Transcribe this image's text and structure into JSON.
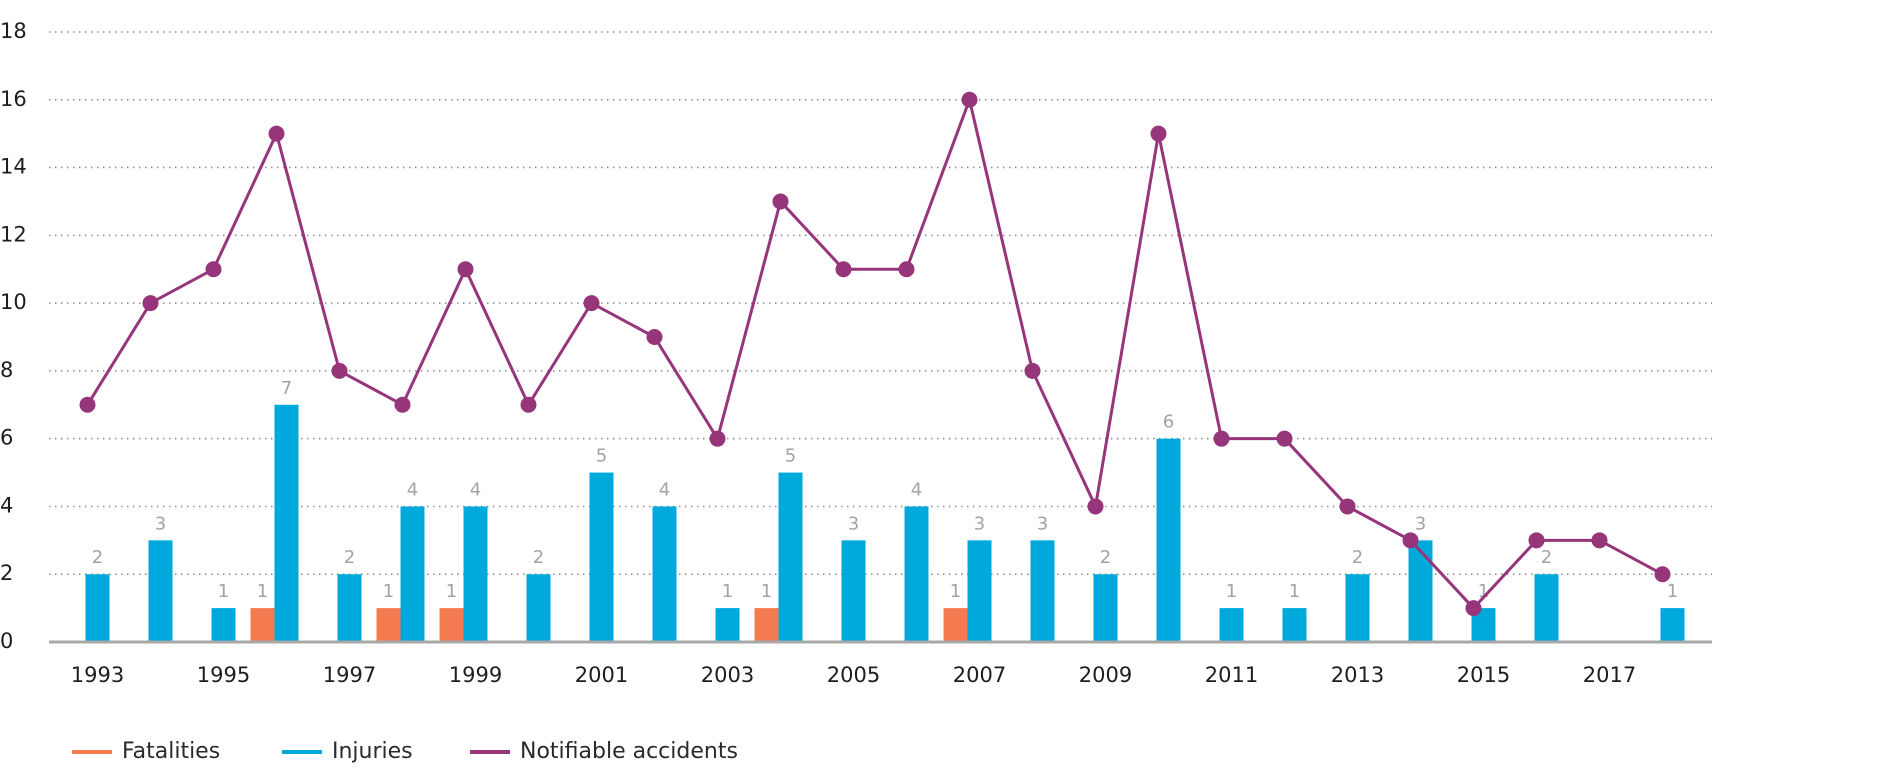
{
  "chart_data": {
    "type": "bar-line",
    "categories": [
      "1993",
      null,
      "1995",
      null,
      "1997",
      null,
      "1999",
      null,
      "2001",
      null,
      "2003",
      null,
      "2005",
      null,
      "2007",
      null,
      "2009",
      null,
      "2011",
      null,
      "2013",
      null,
      "2015",
      null,
      "2017",
      null
    ],
    "series": [
      {
        "name": "Fatalities",
        "color": "#f47b4f",
        "kind": "bar",
        "values": [
          null,
          null,
          null,
          1,
          null,
          1,
          1,
          null,
          null,
          null,
          null,
          1,
          null,
          null,
          1,
          null,
          null,
          null,
          null,
          null,
          null,
          null,
          null,
          null,
          null,
          null
        ]
      },
      {
        "name": "Injuries",
        "color": "#00a9dc",
        "kind": "bar",
        "values": [
          2,
          3,
          1,
          7,
          2,
          4,
          4,
          2,
          5,
          4,
          1,
          5,
          3,
          4,
          3,
          3,
          2,
          6,
          1,
          1,
          2,
          3,
          1,
          2,
          null,
          1
        ]
      },
      {
        "name": "Notifiable accidents",
        "color": "#97357b",
        "kind": "line",
        "values": [
          7,
          10,
          11,
          15,
          8,
          7,
          11,
          7,
          10,
          9,
          6,
          13,
          11,
          11,
          16,
          8,
          4,
          15,
          6,
          6,
          4,
          3,
          1,
          3,
          3,
          2
        ]
      }
    ],
    "ylim": [
      0,
      18
    ],
    "yticks": [
      0,
      2,
      4,
      6,
      8,
      10,
      12,
      14,
      16,
      18
    ],
    "grid": true
  }
}
